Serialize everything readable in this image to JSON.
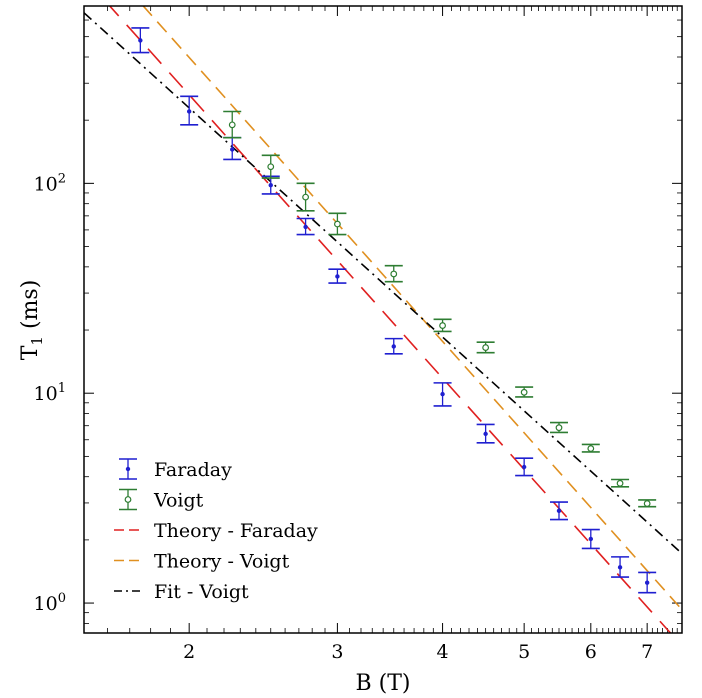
{
  "chart_data": {
    "type": "scatter",
    "xlabel": "B (T)",
    "ylabel_main": "T",
    "ylabel_sub": "1",
    "ylabel_unit": " (ms)",
    "x_scale": "log",
    "y_scale": "log",
    "xlim": [
      1.5,
      7.7
    ],
    "ylim": [
      0.72,
      700
    ],
    "x_ticks": [
      2,
      3,
      4,
      5,
      6,
      7
    ],
    "x_tick_labels": [
      "2",
      "3",
      "4",
      "5",
      "6",
      "7"
    ],
    "y_ticks": [
      1,
      10,
      100
    ],
    "y_tick_labels": [
      {
        "base": "10",
        "exp": "0"
      },
      {
        "base": "10",
        "exp": "1"
      },
      {
        "base": "10",
        "exp": "2"
      }
    ],
    "grid": false,
    "legend_position": "bottom-left",
    "series": [
      {
        "name": "Faraday",
        "kind": "errorbar",
        "color": "#1f1fd0",
        "marker": "dot",
        "x": [
          1.75,
          2.0,
          2.25,
          2.5,
          2.75,
          3.0,
          3.5,
          4.0,
          4.5,
          5.0,
          5.5,
          6.0,
          6.5,
          7.0
        ],
        "y": [
          480,
          220,
          145,
          98,
          62,
          36,
          16.7,
          9.9,
          6.4,
          4.45,
          2.75,
          2.02,
          1.48,
          1.25
        ],
        "yerr_low": [
          60,
          30,
          15,
          9,
          5,
          2.5,
          1.3,
          1.2,
          0.6,
          0.4,
          0.25,
          0.2,
          0.15,
          0.13
        ],
        "yerr_high": [
          70,
          40,
          20,
          10,
          6,
          3,
          1.5,
          1.3,
          0.7,
          0.45,
          0.28,
          0.22,
          0.18,
          0.15
        ]
      },
      {
        "name": "Voigt",
        "kind": "errorbar",
        "color": "#2e7d32",
        "marker": "open-circle",
        "x": [
          2.25,
          2.5,
          2.75,
          3.0,
          3.5,
          4.0,
          4.5,
          5.0,
          5.5,
          6.0,
          6.5,
          7.0
        ],
        "y": [
          190,
          120,
          86,
          64,
          37,
          21,
          16.5,
          10.1,
          6.85,
          5.45,
          3.72,
          2.98
        ],
        "yerr_low": [
          25,
          14,
          12,
          7,
          3,
          1.3,
          0.9,
          0.5,
          0.35,
          0.2,
          0.14,
          0.1
        ],
        "yerr_high": [
          30,
          16,
          14,
          8,
          3.5,
          1.5,
          1.0,
          0.6,
          0.4,
          0.25,
          0.16,
          0.12
        ]
      },
      {
        "name": "Theory - Faraday",
        "kind": "line",
        "color": "#e02020",
        "dash": "long-dash",
        "x": [
          1.5,
          7.7
        ],
        "y": [
          960,
          0.625
        ]
      },
      {
        "name": "Theory - Voigt",
        "kind": "line",
        "color": "#e09020",
        "dash": "dash",
        "x": [
          1.5,
          7.7
        ],
        "y": [
          1450,
          0.93
        ]
      },
      {
        "name": "Fit - Voigt",
        "kind": "line",
        "color": "#000000",
        "dash": "dash-dot",
        "x": [
          1.5,
          7.7
        ],
        "y": [
          650,
          1.72
        ]
      }
    ]
  }
}
